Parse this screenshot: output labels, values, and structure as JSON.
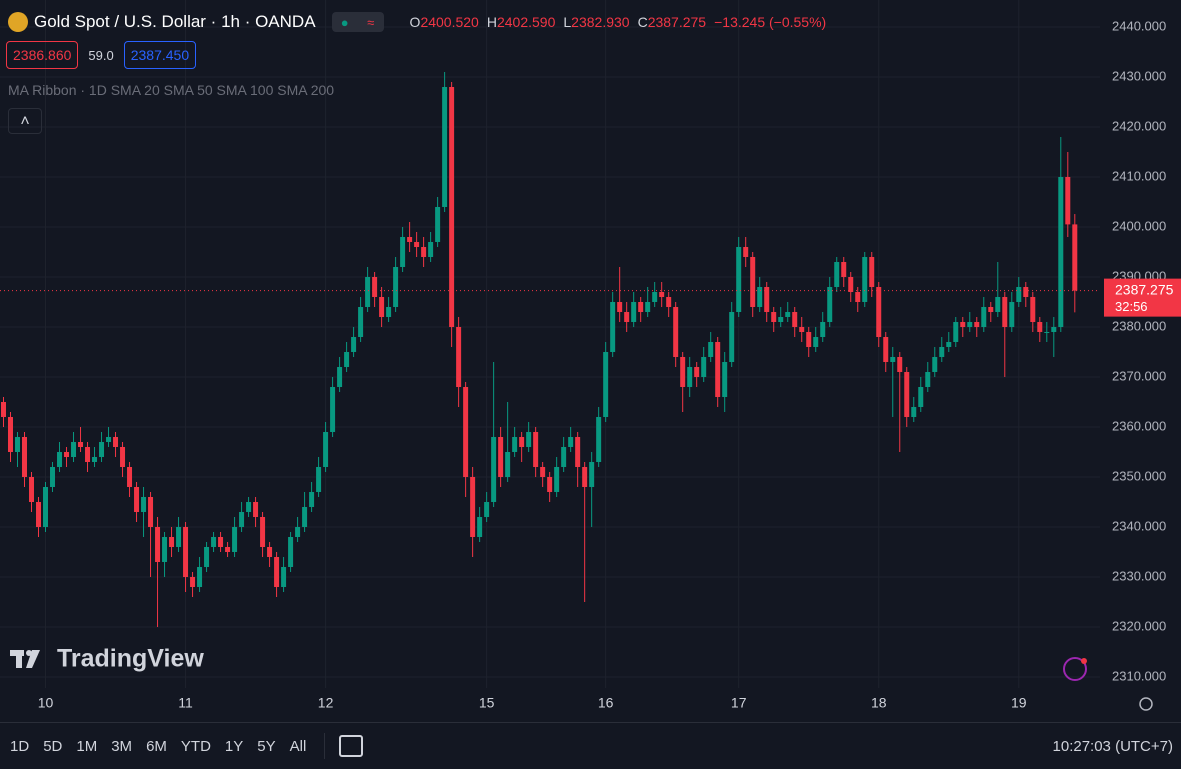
{
  "header": {
    "symbol": "Gold Spot / U.S. Dollar · 1h · OANDA",
    "ohlc": [
      {
        "key": "O",
        "value": "2400.520"
      },
      {
        "key": "H",
        "value": "2402.590"
      },
      {
        "key": "L",
        "value": "2382.930"
      },
      {
        "key": "C",
        "value": "2387.275"
      }
    ],
    "change": "−13.245 (−0.55%)",
    "bid": "2386.860",
    "spread": "59.0",
    "ask": "2387.450",
    "indicator": "MA Ribbon · 1D SMA 20 SMA 50 SMA 100 SMA 200"
  },
  "chart_data": {
    "type": "candlestick",
    "up_color": "#089981",
    "down_color": "#f23645",
    "grid": true,
    "xlim": [
      -0.5,
      156.6
    ],
    "ylim": [
      2301.4,
      2445.4
    ],
    "xticks": [
      {
        "value": 6,
        "label": "10"
      },
      {
        "value": 26,
        "label": "11"
      },
      {
        "value": 46,
        "label": "12"
      },
      {
        "value": 69,
        "label": "15"
      },
      {
        "value": 86,
        "label": "16"
      },
      {
        "value": 105,
        "label": "17"
      },
      {
        "value": 125,
        "label": "18"
      },
      {
        "value": 145,
        "label": "19"
      }
    ],
    "yticks": [
      {
        "value": 2310,
        "label": "2310.000"
      },
      {
        "value": 2320,
        "label": "2320.000"
      },
      {
        "value": 2330,
        "label": "2330.000"
      },
      {
        "value": 2340,
        "label": "2340.000"
      },
      {
        "value": 2350,
        "label": "2350.000"
      },
      {
        "value": 2360,
        "label": "2360.000"
      },
      {
        "value": 2370,
        "label": "2370.000"
      },
      {
        "value": 2380,
        "label": "2380.000"
      },
      {
        "value": 2390,
        "label": "2390.000"
      },
      {
        "value": 2400,
        "label": "2400.000"
      },
      {
        "value": 2410,
        "label": "2410.000"
      },
      {
        "value": 2420,
        "label": "2420.000"
      },
      {
        "value": 2430,
        "label": "2430.000"
      },
      {
        "value": 2440,
        "label": "2440.000"
      }
    ],
    "last_price_label": "2387.275",
    "countdown": "32:56",
    "candles": [
      [
        2365,
        2366,
        2360,
        2362
      ],
      [
        2362,
        2363,
        2353,
        2355
      ],
      [
        2355,
        2359,
        2352,
        2358
      ],
      [
        2358,
        2359,
        2348,
        2350
      ],
      [
        2350,
        2351,
        2343,
        2345
      ],
      [
        2345,
        2346,
        2338,
        2340
      ],
      [
        2340,
        2349,
        2339,
        2348
      ],
      [
        2348,
        2353,
        2347,
        2352
      ],
      [
        2352,
        2357,
        2351,
        2355
      ],
      [
        2355,
        2356,
        2352,
        2354
      ],
      [
        2354,
        2359,
        2353,
        2357
      ],
      [
        2357,
        2360,
        2355,
        2356
      ],
      [
        2356,
        2357,
        2351,
        2353
      ],
      [
        2353,
        2356,
        2352,
        2354
      ],
      [
        2354,
        2359,
        2353,
        2357
      ],
      [
        2357,
        2360,
        2356,
        2358
      ],
      [
        2358,
        2359,
        2354,
        2356
      ],
      [
        2356,
        2357,
        2350,
        2352
      ],
      [
        2352,
        2353,
        2346,
        2348
      ],
      [
        2348,
        2349,
        2341,
        2343
      ],
      [
        2343,
        2348,
        2338,
        2346
      ],
      [
        2346,
        2347,
        2330,
        2340
      ],
      [
        2340,
        2342,
        2320,
        2333
      ],
      [
        2333,
        2339,
        2330,
        2338
      ],
      [
        2338,
        2340,
        2334,
        2336
      ],
      [
        2336,
        2342,
        2335,
        2340
      ],
      [
        2340,
        2341,
        2327,
        2330
      ],
      [
        2330,
        2331,
        2326,
        2328
      ],
      [
        2328,
        2334,
        2327,
        2332
      ],
      [
        2332,
        2337,
        2331,
        2336
      ],
      [
        2336,
        2339,
        2335,
        2338
      ],
      [
        2338,
        2339,
        2335,
        2336
      ],
      [
        2336,
        2337,
        2334,
        2335
      ],
      [
        2335,
        2342,
        2334,
        2340
      ],
      [
        2340,
        2345,
        2339,
        2343
      ],
      [
        2343,
        2346,
        2342,
        2345
      ],
      [
        2345,
        2346,
        2340,
        2342
      ],
      [
        2342,
        2343,
        2334,
        2336
      ],
      [
        2336,
        2337,
        2332,
        2334
      ],
      [
        2334,
        2335,
        2326,
        2328
      ],
      [
        2328,
        2334,
        2327,
        2332
      ],
      [
        2332,
        2339,
        2331,
        2338
      ],
      [
        2338,
        2342,
        2337,
        2340
      ],
      [
        2340,
        2347,
        2339,
        2344
      ],
      [
        2344,
        2349,
        2343,
        2347
      ],
      [
        2347,
        2354,
        2346,
        2352
      ],
      [
        2352,
        2361,
        2351,
        2359
      ],
      [
        2359,
        2370,
        2358,
        2368
      ],
      [
        2368,
        2374,
        2367,
        2372
      ],
      [
        2372,
        2377,
        2371,
        2375
      ],
      [
        2375,
        2380,
        2374,
        2378
      ],
      [
        2378,
        2386,
        2377,
        2384
      ],
      [
        2384,
        2392,
        2383,
        2390
      ],
      [
        2390,
        2391,
        2384,
        2386
      ],
      [
        2386,
        2388,
        2380,
        2382
      ],
      [
        2382,
        2386,
        2381,
        2384
      ],
      [
        2384,
        2394,
        2383,
        2392
      ],
      [
        2392,
        2400,
        2391,
        2398
      ],
      [
        2398,
        2401,
        2395,
        2397
      ],
      [
        2397,
        2399,
        2394,
        2396
      ],
      [
        2396,
        2398,
        2392,
        2394
      ],
      [
        2394,
        2399,
        2393,
        2397
      ],
      [
        2397,
        2406,
        2396,
        2404
      ],
      [
        2404,
        2431,
        2403,
        2428
      ],
      [
        2428,
        2429,
        2376,
        2380
      ],
      [
        2380,
        2382,
        2364,
        2368
      ],
      [
        2368,
        2369,
        2346,
        2350
      ],
      [
        2350,
        2352,
        2334,
        2338
      ],
      [
        2338,
        2344,
        2337,
        2342
      ],
      [
        2342,
        2347,
        2341,
        2345
      ],
      [
        2345,
        2373,
        2344,
        2358
      ],
      [
        2358,
        2360,
        2348,
        2350
      ],
      [
        2350,
        2365,
        2349,
        2355
      ],
      [
        2355,
        2360,
        2354,
        2358
      ],
      [
        2358,
        2359,
        2353,
        2356
      ],
      [
        2356,
        2361,
        2355,
        2359
      ],
      [
        2359,
        2360,
        2350,
        2352
      ],
      [
        2352,
        2353,
        2348,
        2350
      ],
      [
        2350,
        2351,
        2345,
        2347
      ],
      [
        2347,
        2354,
        2346,
        2352
      ],
      [
        2352,
        2358,
        2351,
        2356
      ],
      [
        2356,
        2360,
        2355,
        2358
      ],
      [
        2358,
        2359,
        2348,
        2352
      ],
      [
        2352,
        2353,
        2325,
        2348
      ],
      [
        2348,
        2355,
        2340,
        2353
      ],
      [
        2353,
        2364,
        2352,
        2362
      ],
      [
        2362,
        2377,
        2361,
        2375
      ],
      [
        2375,
        2387,
        2374,
        2385
      ],
      [
        2385,
        2392,
        2381,
        2383
      ],
      [
        2383,
        2385,
        2379,
        2381
      ],
      [
        2381,
        2387,
        2380,
        2385
      ],
      [
        2385,
        2386,
        2381,
        2383
      ],
      [
        2383,
        2388,
        2382,
        2385
      ],
      [
        2385,
        2389,
        2384,
        2387
      ],
      [
        2387,
        2389,
        2384,
        2386
      ],
      [
        2386,
        2387,
        2382,
        2384
      ],
      [
        2384,
        2385,
        2372,
        2374
      ],
      [
        2374,
        2375,
        2363,
        2368
      ],
      [
        2368,
        2374,
        2366,
        2372
      ],
      [
        2372,
        2373,
        2368,
        2370
      ],
      [
        2370,
        2376,
        2369,
        2374
      ],
      [
        2374,
        2379,
        2373,
        2377
      ],
      [
        2377,
        2378,
        2364,
        2366
      ],
      [
        2366,
        2375,
        2363,
        2373
      ],
      [
        2373,
        2385,
        2372,
        2383
      ],
      [
        2383,
        2398,
        2382,
        2396
      ],
      [
        2396,
        2398,
        2392,
        2394
      ],
      [
        2394,
        2395,
        2382,
        2384
      ],
      [
        2384,
        2390,
        2383,
        2388
      ],
      [
        2388,
        2389,
        2381,
        2383
      ],
      [
        2383,
        2384,
        2379,
        2381
      ],
      [
        2381,
        2384,
        2380,
        2382
      ],
      [
        2382,
        2385,
        2381,
        2383
      ],
      [
        2383,
        2384,
        2378,
        2380
      ],
      [
        2380,
        2382,
        2377,
        2379
      ],
      [
        2379,
        2380,
        2374,
        2376
      ],
      [
        2376,
        2380,
        2375,
        2378
      ],
      [
        2378,
        2383,
        2377,
        2381
      ],
      [
        2381,
        2390,
        2380,
        2388
      ],
      [
        2388,
        2394,
        2387,
        2393
      ],
      [
        2393,
        2394,
        2388,
        2390
      ],
      [
        2390,
        2391,
        2385,
        2387
      ],
      [
        2387,
        2388,
        2383,
        2385
      ],
      [
        2385,
        2395,
        2384,
        2394
      ],
      [
        2394,
        2395,
        2386,
        2388
      ],
      [
        2388,
        2389,
        2376,
        2378
      ],
      [
        2378,
        2379,
        2371,
        2373
      ],
      [
        2373,
        2376,
        2362,
        2374
      ],
      [
        2374,
        2375,
        2355,
        2371
      ],
      [
        2371,
        2372,
        2360,
        2362
      ],
      [
        2362,
        2366,
        2361,
        2364
      ],
      [
        2364,
        2370,
        2363,
        2368
      ],
      [
        2368,
        2373,
        2367,
        2371
      ],
      [
        2371,
        2376,
        2370,
        2374
      ],
      [
        2374,
        2378,
        2373,
        2376
      ],
      [
        2376,
        2379,
        2375,
        2377
      ],
      [
        2377,
        2382,
        2376,
        2381
      ],
      [
        2381,
        2382,
        2378,
        2380
      ],
      [
        2380,
        2383,
        2379,
        2381
      ],
      [
        2381,
        2382,
        2378,
        2380
      ],
      [
        2380,
        2386,
        2379,
        2384
      ],
      [
        2384,
        2385,
        2381,
        2383
      ],
      [
        2383,
        2393,
        2382,
        2386
      ],
      [
        2386,
        2387,
        2370,
        2380
      ],
      [
        2380,
        2387,
        2379,
        2385
      ],
      [
        2385,
        2390,
        2384,
        2388
      ],
      [
        2388,
        2389,
        2384,
        2386
      ],
      [
        2386,
        2387,
        2379,
        2381
      ],
      [
        2381,
        2382,
        2377,
        2379
      ],
      [
        2379,
        2381,
        2377,
        2379
      ],
      [
        2379,
        2382,
        2374,
        2380
      ],
      [
        2380,
        2418,
        2379,
        2410
      ],
      [
        2410,
        2415,
        2398,
        2400.52
      ],
      [
        2400.52,
        2402.59,
        2382.93,
        2387.275
      ]
    ]
  },
  "watermark": "TradingView",
  "toolbar": {
    "periods": [
      "1D",
      "5D",
      "1M",
      "3M",
      "6M",
      "YTD",
      "1Y",
      "5Y",
      "All"
    ],
    "clock": "10:27:03 (UTC+7)"
  }
}
